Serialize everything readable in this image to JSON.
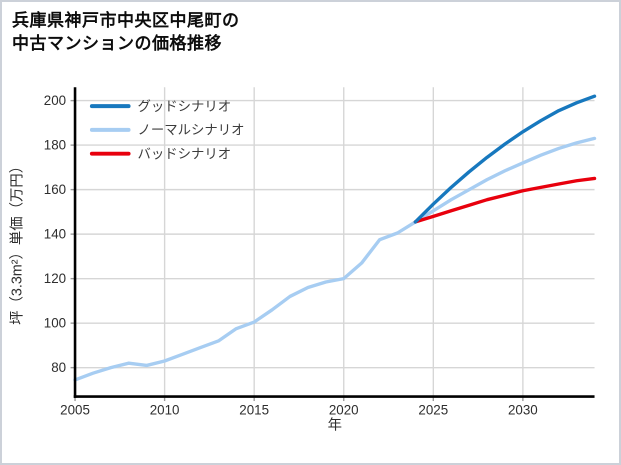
{
  "figure": {
    "background": "#ffffff",
    "border_color": "#ccd1d9"
  },
  "title": {
    "line1": "兵庫県神戸市中央区中尾町の",
    "line2": "中古マンションの価格推移"
  },
  "legend": {
    "position": "top-left",
    "items": [
      {
        "slug": "good-scenario",
        "label": "グッドシナリオ",
        "color": "#1778be"
      },
      {
        "slug": "normal-scenario",
        "label": "ノーマルシナリオ",
        "color": "#a7cdf2"
      },
      {
        "slug": "bad-scenario",
        "label": "バッドシナリオ",
        "color": "#e8000d"
      }
    ]
  },
  "chart_data": {
    "type": "line",
    "title": "兵庫県神戸市中央区中尾町の中古マンションの価格推移",
    "xlabel": "年",
    "ylabel": "坪（3.3m²）単価（万円）",
    "xlim": [
      2005,
      2034
    ],
    "ylim": [
      67,
      206
    ],
    "xticks": [
      2005,
      2010,
      2015,
      2020,
      2025,
      2030
    ],
    "yticks": [
      80,
      100,
      120,
      140,
      160,
      180,
      200
    ],
    "grid": true,
    "grid_color": "#d6d6d6",
    "axis_color": "#000000",
    "tick_color": "#9a9a9a",
    "tick_label_color": "#2e2e2e",
    "legend_position": "top-left",
    "series": [
      {
        "slug": "normal-scenario",
        "name": "ノーマルシナリオ",
        "color": "#a7cdf2",
        "x": [
          2005,
          2006,
          2007,
          2008,
          2009,
          2010,
          2011,
          2012,
          2013,
          2014,
          2015,
          2016,
          2017,
          2018,
          2019,
          2020,
          2021,
          2022,
          2023,
          2024,
          2025,
          2026,
          2027,
          2028,
          2029,
          2030,
          2031,
          2032,
          2033,
          2034
        ],
        "y": [
          74.5,
          77.5,
          80,
          82,
          81,
          83,
          86,
          89,
          92,
          97.5,
          100.5,
          106,
          112,
          116,
          118.5,
          120,
          127,
          137.5,
          140.5,
          145.5,
          150.5,
          155.5,
          160,
          164.5,
          168.5,
          172,
          175.5,
          178.5,
          181,
          183
        ]
      },
      {
        "slug": "bad-scenario",
        "name": "バッドシナリオ",
        "color": "#e8000d",
        "x": [
          2024,
          2025,
          2026,
          2027,
          2028,
          2029,
          2030,
          2031,
          2032,
          2033,
          2034
        ],
        "y": [
          145.5,
          148,
          150.5,
          153,
          155.5,
          157.5,
          159.5,
          161,
          162.5,
          164,
          165
        ]
      },
      {
        "slug": "good-scenario",
        "name": "グッドシナリオ",
        "color": "#1778be",
        "x": [
          2024,
          2025,
          2026,
          2027,
          2028,
          2029,
          2030,
          2031,
          2032,
          2033,
          2034
        ],
        "y": [
          145.5,
          153.5,
          161,
          168,
          174.5,
          180.5,
          186,
          191,
          195.5,
          199,
          202
        ]
      }
    ]
  }
}
